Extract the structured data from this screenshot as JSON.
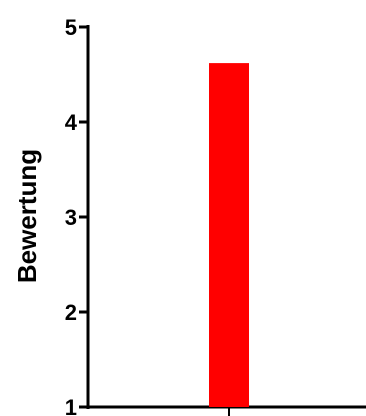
{
  "chart_data": {
    "type": "bar",
    "categories": [
      ""
    ],
    "values": [
      4.62
    ],
    "title": "",
    "xlabel": "",
    "ylabel": "Bewertung",
    "ylim": [
      1,
      5
    ],
    "yticks": [
      1,
      2,
      3,
      4,
      5
    ],
    "grid": false,
    "bar_color": "#ff0000",
    "axis_color": "#000000"
  }
}
